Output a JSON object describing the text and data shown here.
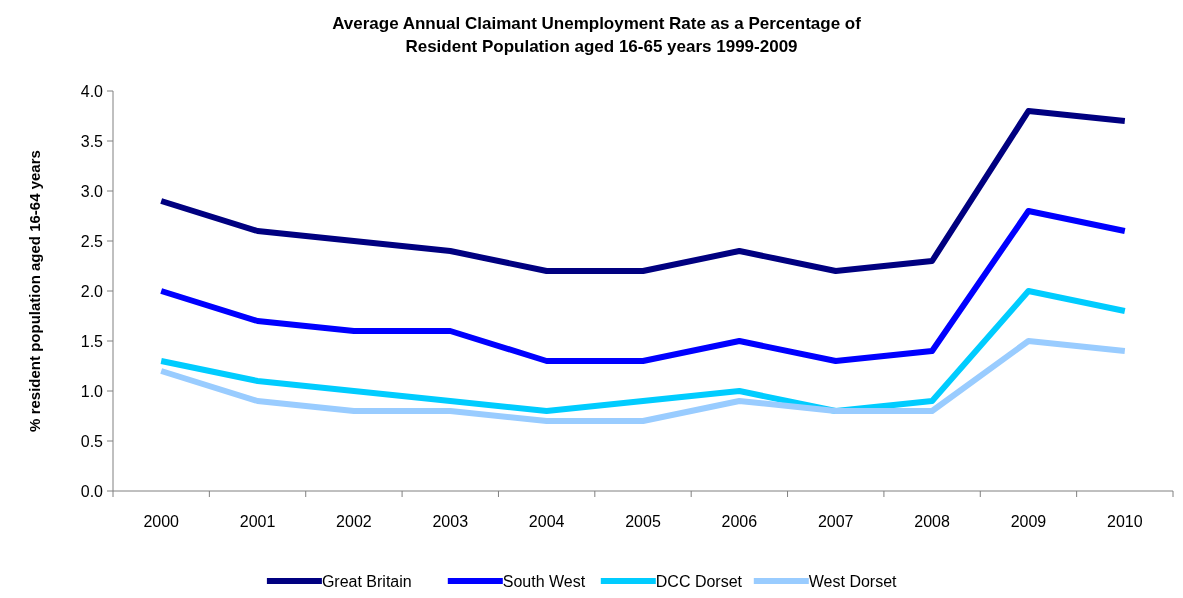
{
  "chart_data": {
    "type": "line",
    "title": "Average Annual Claimant Unemployment Rate as a Percentage of Resident Population aged 16-65 years 1999-2009",
    "ylabel": "% resident population aged 16-64 years",
    "categories": [
      "2000",
      "2001",
      "2002",
      "2003",
      "2004",
      "2005",
      "2006",
      "2007",
      "2008",
      "2009",
      "2010"
    ],
    "series": [
      {
        "name": "Great Britain",
        "color": "#000080",
        "values": [
          2.9,
          2.6,
          2.5,
          2.4,
          2.2,
          2.2,
          2.4,
          2.2,
          2.3,
          3.8,
          3.7
        ]
      },
      {
        "name": "South West",
        "color": "#0000ff",
        "values": [
          2.0,
          1.7,
          1.6,
          1.6,
          1.3,
          1.3,
          1.5,
          1.3,
          1.4,
          2.8,
          2.6
        ]
      },
      {
        "name": "DCC Dorset",
        "color": "#00ccff",
        "values": [
          1.3,
          1.1,
          1.0,
          0.9,
          0.8,
          0.9,
          1.0,
          0.8,
          0.9,
          2.0,
          1.8
        ]
      },
      {
        "name": "West Dorset",
        "color": "#99ccff",
        "values": [
          1.2,
          0.9,
          0.8,
          0.8,
          0.7,
          0.7,
          0.9,
          0.8,
          0.8,
          1.5,
          1.4
        ]
      }
    ],
    "ylim": [
      0,
      4
    ],
    "yticks": [
      {
        "value": 0,
        "label": "0.0"
      },
      0.5,
      {
        "value": 1,
        "label": "1.0"
      },
      1.5,
      {
        "value": 2,
        "label": "2.0"
      },
      2.5,
      {
        "value": 3,
        "label": "3.0"
      },
      3.5,
      {
        "value": 4,
        "label": "4.0"
      }
    ],
    "grid": false,
    "legend": "bottom",
    "marker": "none",
    "line_style": "solid"
  }
}
